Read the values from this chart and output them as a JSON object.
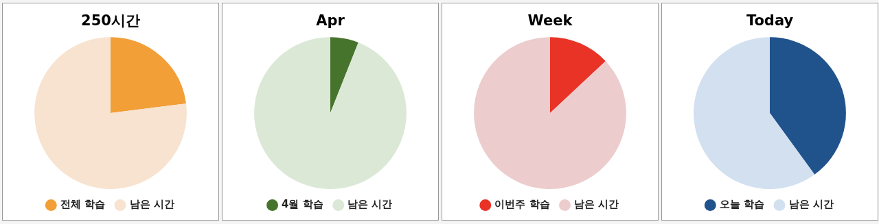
{
  "chart_data": [
    {
      "type": "pie",
      "title": "250시간",
      "categories": [
        "전체 학습",
        "남은 시간"
      ],
      "values": [
        23,
        77
      ],
      "colors": [
        "#f29f38",
        "#f7e3d0"
      ],
      "legend": "bottom"
    },
    {
      "type": "pie",
      "title": "Apr",
      "categories": [
        "4월 학습",
        "남은 시간"
      ],
      "values": [
        6,
        94
      ],
      "colors": [
        "#46742c",
        "#dbe8d6"
      ],
      "legend": "bottom"
    },
    {
      "type": "pie",
      "title": "Week",
      "categories": [
        "이번주 학습",
        "남은 시간"
      ],
      "values": [
        13,
        87
      ],
      "colors": [
        "#e83326",
        "#eccccc"
      ],
      "legend": "bottom"
    },
    {
      "type": "pie",
      "title": "Today",
      "categories": [
        "오늘 학습",
        "남은 시간"
      ],
      "values": [
        40,
        60
      ],
      "colors": [
        "#20528c",
        "#d2e0f0"
      ],
      "legend": "bottom"
    }
  ]
}
